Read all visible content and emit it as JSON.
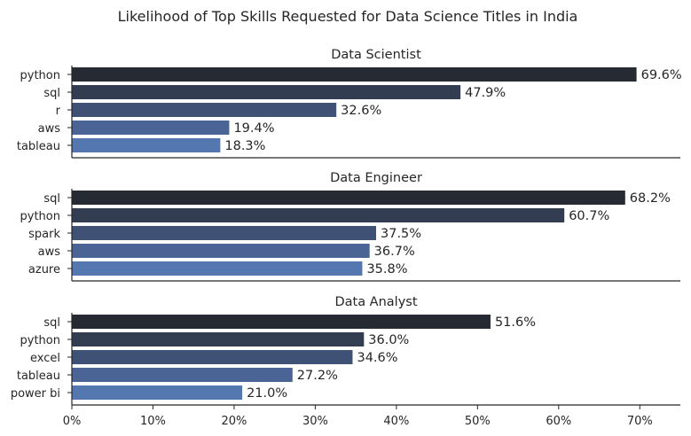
{
  "title": "Likelihood of Top Skills Requested for Data Science Titles in India",
  "colors": {
    "palette": [
      "#262a33",
      "#333d52",
      "#3f5276",
      "#4a6496",
      "#5577b0"
    ],
    "axis": "#262626",
    "text": "#262626"
  },
  "chart_data": [
    {
      "type": "bar",
      "orientation": "horizontal",
      "title": "Data Scientist",
      "categories": [
        "python",
        "sql",
        "r",
        "aws",
        "tableau"
      ],
      "values": [
        69.6,
        47.9,
        32.6,
        19.4,
        18.3
      ],
      "data_labels": [
        "69.6%",
        "47.9%",
        "32.6%",
        "19.4%",
        "18.3%"
      ],
      "xlim": [
        0,
        75
      ]
    },
    {
      "type": "bar",
      "orientation": "horizontal",
      "title": "Data Engineer",
      "categories": [
        "sql",
        "python",
        "spark",
        "aws",
        "azure"
      ],
      "values": [
        68.2,
        60.7,
        37.5,
        36.7,
        35.8
      ],
      "data_labels": [
        "68.2%",
        "60.7%",
        "37.5%",
        "36.7%",
        "35.8%"
      ],
      "xlim": [
        0,
        75
      ]
    },
    {
      "type": "bar",
      "orientation": "horizontal",
      "title": "Data Analyst",
      "categories": [
        "sql",
        "python",
        "excel",
        "tableau",
        "power bi"
      ],
      "values": [
        51.6,
        36.0,
        34.6,
        27.2,
        21.0
      ],
      "data_labels": [
        "51.6%",
        "36.0%",
        "34.6%",
        "27.2%",
        "21.0%"
      ],
      "xlim": [
        0,
        75
      ],
      "xticks": [
        0,
        10,
        20,
        30,
        40,
        50,
        60,
        70
      ],
      "xtick_labels": [
        "0%",
        "10%",
        "20%",
        "30%",
        "40%",
        "50%",
        "60%",
        "70%"
      ]
    }
  ]
}
